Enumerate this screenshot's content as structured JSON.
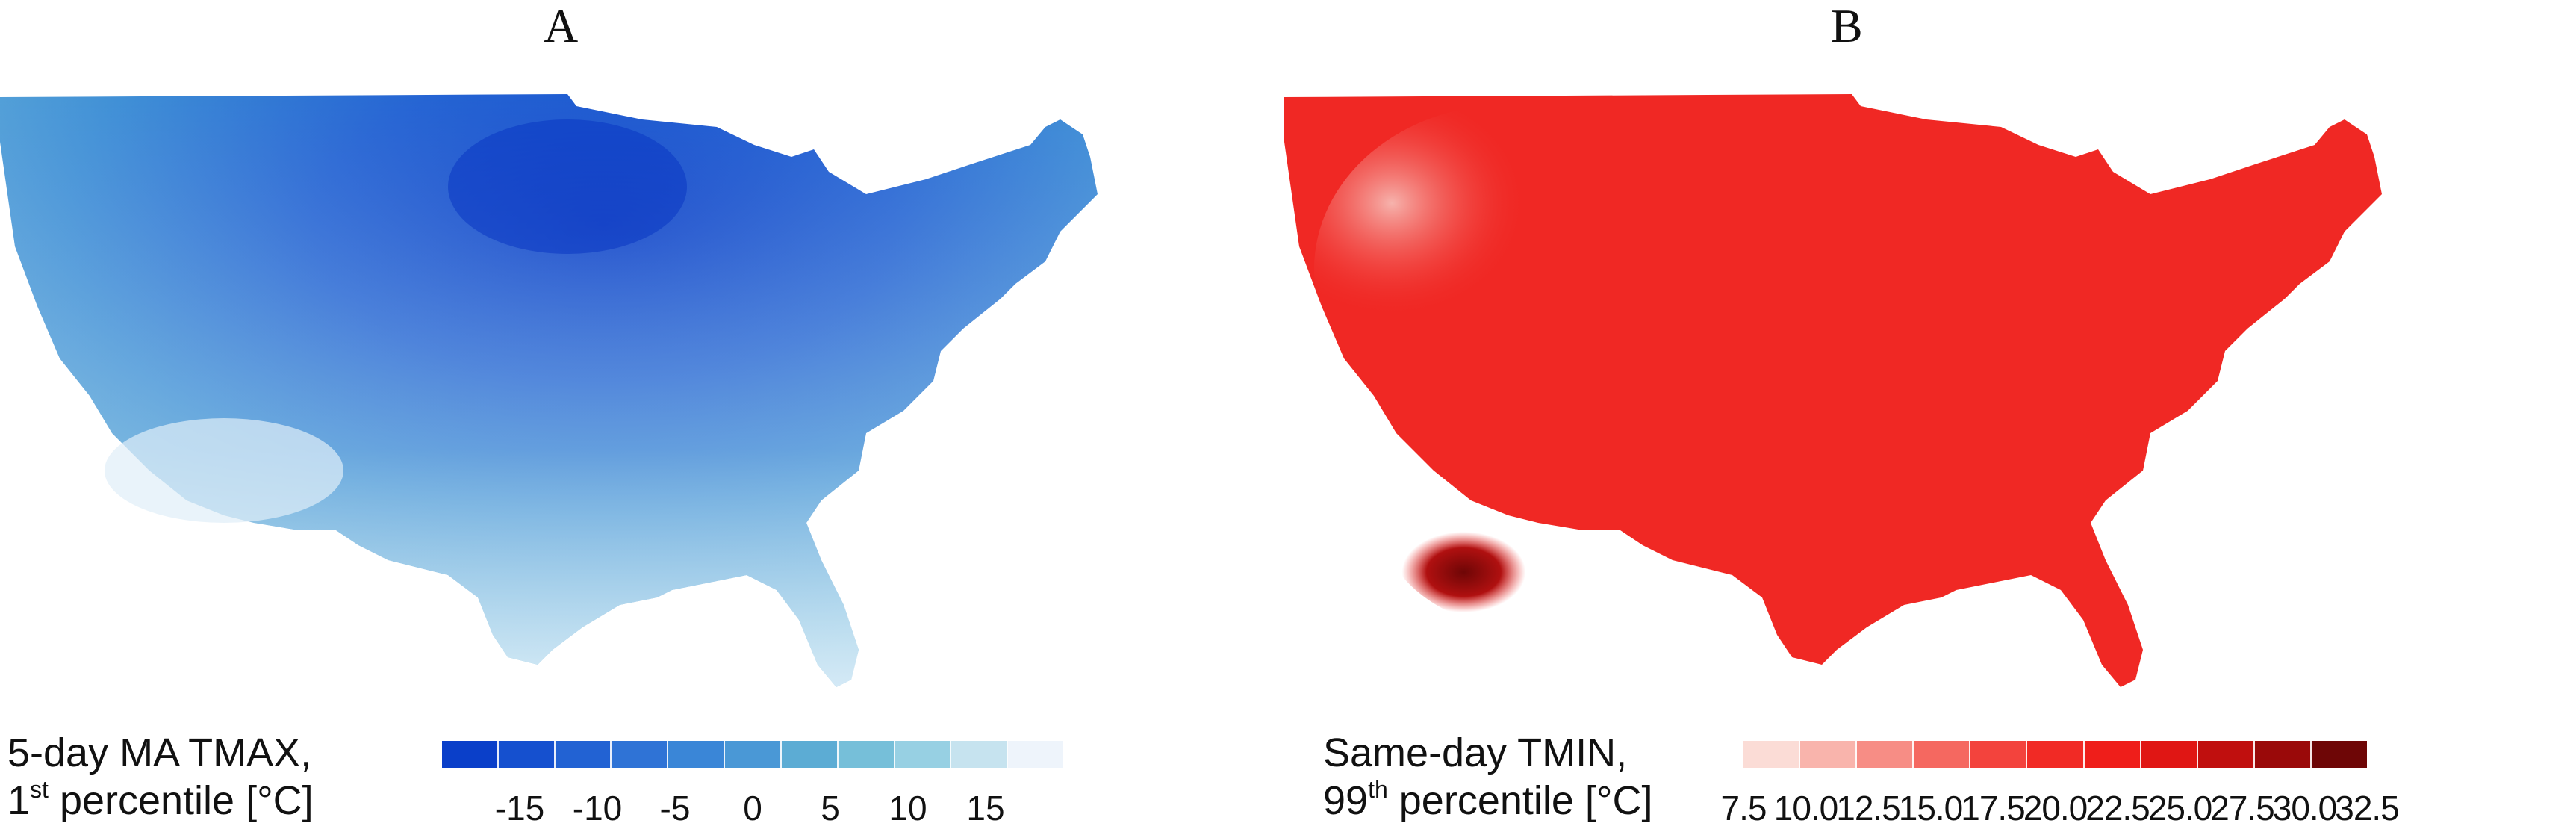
{
  "panels": [
    {
      "label": "A",
      "legend": {
        "title_line1": "5-day MA TMAX,",
        "title_line2_pre": "1",
        "title_line2_sup": "st",
        "title_line2_post": " percentile [°C]",
        "ticks": [
          "-15",
          "-10",
          "-5",
          "0",
          "5",
          "10",
          "15"
        ],
        "tick_values": [
          -15,
          -10,
          -5,
          0,
          5,
          10,
          15
        ],
        "range": [
          -20,
          20
        ],
        "colors": [
          "#0a3fc9",
          "#1550cf",
          "#2262d3",
          "#2f73d6",
          "#3a86d7",
          "#4a98d6",
          "#5cacd4",
          "#76bfd9",
          "#97d0e3",
          "#c6e3ef",
          "#eef4fb"
        ]
      }
    },
    {
      "label": "B",
      "legend": {
        "title_line1": "Same-day TMIN,",
        "title_line2_pre": "99",
        "title_line2_sup": "th",
        "title_line2_post": " percentile [°C]",
        "ticks": [
          "7.5",
          "10.0",
          "12.5",
          "15.0",
          "17.5",
          "20.0",
          "22.5",
          "25.0",
          "27.5",
          "30.0",
          "32.5"
        ],
        "tick_values": [
          7.5,
          10.0,
          12.5,
          15.0,
          17.5,
          20.0,
          22.5,
          25.0,
          27.5,
          30.0,
          32.5
        ],
        "range": [
          7.5,
          32.5
        ],
        "colors": [
          "#fbdcd6",
          "#f9b4ac",
          "#f78d85",
          "#f56860",
          "#f3433d",
          "#f12a25",
          "#ef1e1a",
          "#e01614",
          "#c00f0e",
          "#9a0909",
          "#6e0606"
        ]
      }
    }
  ]
}
